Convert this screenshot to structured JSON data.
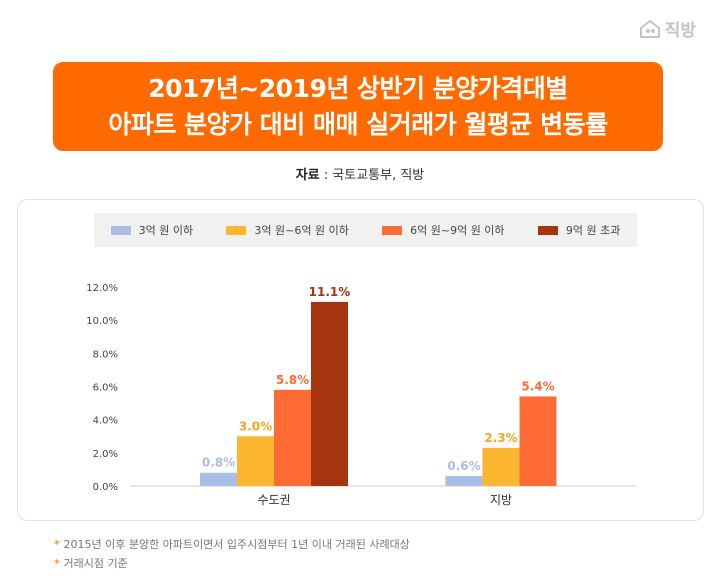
{
  "brand": {
    "name": "직방"
  },
  "title": {
    "line1": "2017년~2019년 상반기 분양가격대별",
    "line2": "아파트 분양가 대비 매매 실거래가 월평균 변동률"
  },
  "source": {
    "label": "자료",
    "text": " : 국토교통부, 직방"
  },
  "notes": [
    "2015년 이후 분양한 아파트이면서 입주시점부터 1년 이내 거래된 사례대상",
    "거래시점 기준"
  ],
  "chart_data": {
    "type": "bar",
    "categories": [
      "수도권",
      "지방"
    ],
    "series": [
      {
        "name": "3억 원 이하",
        "color": "#a9bde6",
        "values": [
          0.8,
          0.6
        ],
        "labels": [
          "0.8%",
          "0.6%"
        ],
        "label_color": "#a9bde6"
      },
      {
        "name": "3억 원~6억 원 이하",
        "color": "#fdb62f",
        "values": [
          3.0,
          2.3
        ],
        "labels": [
          "3.0%",
          "2.3%"
        ],
        "label_color": "#f5a623"
      },
      {
        "name": "6억 원~9억 원 이하",
        "color": "#ff6b35",
        "values": [
          5.8,
          5.4
        ],
        "labels": [
          "5.8%",
          "5.4%"
        ],
        "label_color": "#ff6b35"
      },
      {
        "name": "9억 원 초과",
        "color": "#a5340f",
        "values": [
          11.1,
          null
        ],
        "labels": [
          "11.1%",
          ""
        ],
        "label_color": "#a5340f"
      }
    ],
    "yticks": [
      "0.0%",
      "2.0%",
      "4.0%",
      "6.0%",
      "8.0%",
      "10.0%",
      "12.0%"
    ],
    "ylim": [
      0,
      12
    ],
    "legend_position": "top",
    "grid": false
  }
}
